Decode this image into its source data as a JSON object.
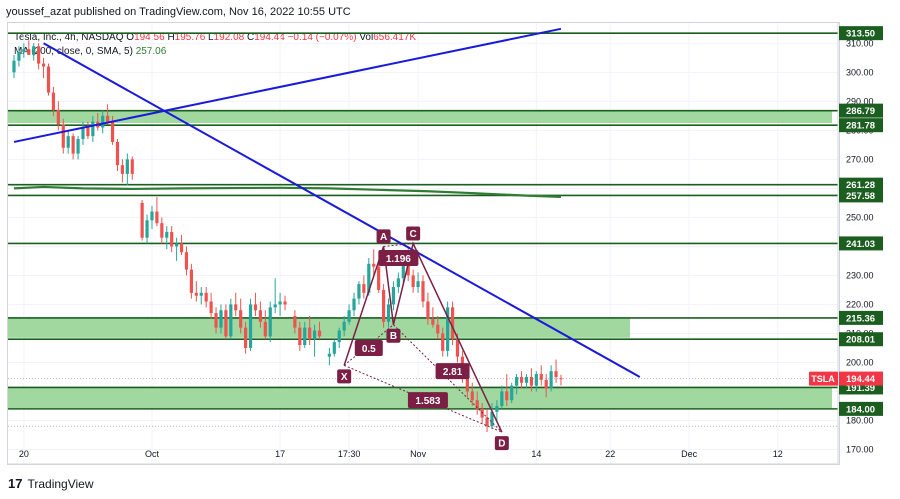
{
  "publisher": "youssef_azat published on TradingView.com, Nov 16, 2022 10:55 UTC",
  "legend": {
    "symbol": "Tesla, Inc., 4h, NASDAQ",
    "open_label": "O",
    "open": "194.56",
    "high_label": "H",
    "high": "195.76",
    "low_label": "L",
    "low": "192.08",
    "close_label": "C",
    "close": "194.44",
    "change": "−0.14 (−0.07%)",
    "vol_label": "Vol",
    "vol": "656.417K",
    "ma_label": "MA (200, close, 0, SMA, 5)",
    "ma_value": "257.06"
  },
  "footer": {
    "brand": "TradingView",
    "mark": "17"
  },
  "colors": {
    "up": "#26a69a",
    "down": "#ef5350",
    "trendline": "#1a1adb",
    "level": "#1b5e20",
    "zone_fill": "#8fd18f",
    "ma": "#2e7d32",
    "pattern": "#7b1f45",
    "ticker_badge": "#f23645"
  },
  "chart_data": {
    "type": "candlestick",
    "currency": "USD",
    "ylim": [
      165,
      317
    ],
    "y_ticks": [
      170,
      180,
      190,
      200,
      210,
      220,
      230,
      240,
      250,
      260,
      270,
      280,
      290,
      300,
      310
    ],
    "y_tick_labels": [
      "170.00",
      "180.00",
      "190.00",
      "200.00",
      "210.00",
      "220.00",
      "230.00",
      "240.00",
      "250.00",
      "260.00",
      "270.00",
      "280.00",
      "290.00",
      "300.00",
      "310.00"
    ],
    "x_range": [
      0,
      166
    ],
    "x_ticks": [
      {
        "x": 2,
        "label": "20"
      },
      {
        "x": 28,
        "label": "Oct"
      },
      {
        "x": 54,
        "label": "17"
      },
      {
        "x": 68,
        "label": "17:30"
      },
      {
        "x": 82,
        "label": "Nov"
      },
      {
        "x": 106,
        "label": "14"
      },
      {
        "x": 121,
        "label": "22"
      },
      {
        "x": 137,
        "label": "Dec"
      },
      {
        "x": 155,
        "label": "12"
      }
    ],
    "candles": [
      {
        "x": 0,
        "o": 300,
        "h": 306,
        "l": 298,
        "c": 304
      },
      {
        "x": 1,
        "o": 304,
        "h": 309,
        "l": 302,
        "c": 307
      },
      {
        "x": 2,
        "o": 307,
        "h": 310,
        "l": 305,
        "c": 308
      },
      {
        "x": 3,
        "o": 308,
        "h": 311,
        "l": 306,
        "c": 306
      },
      {
        "x": 4,
        "o": 306,
        "h": 310,
        "l": 304,
        "c": 309
      },
      {
        "x": 5,
        "o": 309,
        "h": 310,
        "l": 301,
        "c": 303
      },
      {
        "x": 6,
        "o": 303,
        "h": 305,
        "l": 298,
        "c": 302
      },
      {
        "x": 7,
        "o": 302,
        "h": 303,
        "l": 292,
        "c": 293
      },
      {
        "x": 8,
        "o": 293,
        "h": 295,
        "l": 285,
        "c": 287
      },
      {
        "x": 9,
        "o": 287,
        "h": 290,
        "l": 280,
        "c": 282
      },
      {
        "x": 10,
        "o": 282,
        "h": 284,
        "l": 272,
        "c": 274
      },
      {
        "x": 11,
        "o": 274,
        "h": 280,
        "l": 272,
        "c": 278
      },
      {
        "x": 12,
        "o": 278,
        "h": 279,
        "l": 270,
        "c": 272
      },
      {
        "x": 13,
        "o": 272,
        "h": 278,
        "l": 270,
        "c": 277
      },
      {
        "x": 14,
        "o": 277,
        "h": 283,
        "l": 275,
        "c": 281
      },
      {
        "x": 15,
        "o": 281,
        "h": 283,
        "l": 277,
        "c": 278
      },
      {
        "x": 16,
        "o": 278,
        "h": 285,
        "l": 276,
        "c": 283
      },
      {
        "x": 17,
        "o": 283,
        "h": 286,
        "l": 280,
        "c": 281
      },
      {
        "x": 18,
        "o": 281,
        "h": 287,
        "l": 279,
        "c": 285
      },
      {
        "x": 19,
        "o": 285,
        "h": 289,
        "l": 282,
        "c": 283
      },
      {
        "x": 20,
        "o": 283,
        "h": 285,
        "l": 275,
        "c": 276
      },
      {
        "x": 21,
        "o": 276,
        "h": 277,
        "l": 266,
        "c": 268
      },
      {
        "x": 22,
        "o": 268,
        "h": 270,
        "l": 262,
        "c": 265
      },
      {
        "x": 23,
        "o": 265,
        "h": 272,
        "l": 261,
        "c": 270
      },
      {
        "x": 24,
        "o": 270,
        "h": 271,
        "l": 263,
        "c": 265
      },
      {
        "x": 26,
        "o": 255,
        "h": 256,
        "l": 242,
        "c": 243
      },
      {
        "x": 27,
        "o": 243,
        "h": 251,
        "l": 241,
        "c": 249
      },
      {
        "x": 28,
        "o": 249,
        "h": 254,
        "l": 246,
        "c": 252
      },
      {
        "x": 29,
        "o": 252,
        "h": 257,
        "l": 247,
        "c": 248
      },
      {
        "x": 30,
        "o": 248,
        "h": 250,
        "l": 241,
        "c": 243
      },
      {
        "x": 31,
        "o": 243,
        "h": 247,
        "l": 239,
        "c": 245
      },
      {
        "x": 32,
        "o": 245,
        "h": 247,
        "l": 238,
        "c": 240
      },
      {
        "x": 33,
        "o": 240,
        "h": 243,
        "l": 235,
        "c": 241
      },
      {
        "x": 34,
        "o": 241,
        "h": 244,
        "l": 237,
        "c": 238
      },
      {
        "x": 35,
        "o": 238,
        "h": 240,
        "l": 230,
        "c": 232
      },
      {
        "x": 36,
        "o": 232,
        "h": 234,
        "l": 222,
        "c": 224
      },
      {
        "x": 37,
        "o": 224,
        "h": 228,
        "l": 221,
        "c": 223
      },
      {
        "x": 38,
        "o": 223,
        "h": 226,
        "l": 220,
        "c": 224
      },
      {
        "x": 39,
        "o": 224,
        "h": 226,
        "l": 219,
        "c": 221
      },
      {
        "x": 40,
        "o": 221,
        "h": 224,
        "l": 215,
        "c": 217
      },
      {
        "x": 41,
        "o": 217,
        "h": 219,
        "l": 210,
        "c": 212
      },
      {
        "x": 42,
        "o": 212,
        "h": 220,
        "l": 210,
        "c": 218
      },
      {
        "x": 43,
        "o": 218,
        "h": 220,
        "l": 208,
        "c": 209
      },
      {
        "x": 44,
        "o": 209,
        "h": 222,
        "l": 208,
        "c": 220
      },
      {
        "x": 45,
        "o": 220,
        "h": 224,
        "l": 216,
        "c": 218
      },
      {
        "x": 46,
        "o": 218,
        "h": 222,
        "l": 210,
        "c": 212
      },
      {
        "x": 47,
        "o": 212,
        "h": 214,
        "l": 203,
        "c": 205
      },
      {
        "x": 48,
        "o": 205,
        "h": 222,
        "l": 204,
        "c": 220
      },
      {
        "x": 49,
        "o": 220,
        "h": 224,
        "l": 216,
        "c": 218
      },
      {
        "x": 50,
        "o": 218,
        "h": 221,
        "l": 212,
        "c": 214
      },
      {
        "x": 51,
        "o": 214,
        "h": 218,
        "l": 208,
        "c": 209
      },
      {
        "x": 52,
        "o": 209,
        "h": 221,
        "l": 207,
        "c": 219
      },
      {
        "x": 53,
        "o": 219,
        "h": 229,
        "l": 217,
        "c": 220
      },
      {
        "x": 54,
        "o": 220,
        "h": 224,
        "l": 216,
        "c": 221
      },
      {
        "x": 55,
        "o": 221,
        "h": 223,
        "l": 218,
        "c": 220
      },
      {
        "x": 57,
        "o": 216,
        "h": 218,
        "l": 210,
        "c": 212
      },
      {
        "x": 58,
        "o": 212,
        "h": 214,
        "l": 204,
        "c": 206
      },
      {
        "x": 59,
        "o": 206,
        "h": 214,
        "l": 205,
        "c": 212
      },
      {
        "x": 60,
        "o": 212,
        "h": 216,
        "l": 206,
        "c": 208
      },
      {
        "x": 61,
        "o": 208,
        "h": 213,
        "l": 202,
        "c": 211
      },
      {
        "x": 62,
        "o": 211,
        "h": 214,
        "l": 208,
        "c": 209
      },
      {
        "x": 64,
        "o": 202,
        "h": 205,
        "l": 199,
        "c": 203
      },
      {
        "x": 65,
        "o": 203,
        "h": 208,
        "l": 202,
        "c": 207
      },
      {
        "x": 66,
        "o": 207,
        "h": 212,
        "l": 205,
        "c": 211
      },
      {
        "x": 67,
        "o": 211,
        "h": 216,
        "l": 209,
        "c": 214
      },
      {
        "x": 68,
        "o": 214,
        "h": 220,
        "l": 213,
        "c": 218
      },
      {
        "x": 69,
        "o": 218,
        "h": 224,
        "l": 216,
        "c": 222
      },
      {
        "x": 70,
        "o": 222,
        "h": 228,
        "l": 220,
        "c": 227
      },
      {
        "x": 71,
        "o": 227,
        "h": 230,
        "l": 222,
        "c": 224
      },
      {
        "x": 72,
        "o": 224,
        "h": 236,
        "l": 223,
        "c": 234
      },
      {
        "x": 73,
        "o": 234,
        "h": 239,
        "l": 230,
        "c": 233
      },
      {
        "x": 74,
        "o": 233,
        "h": 235,
        "l": 224,
        "c": 225
      },
      {
        "x": 75,
        "o": 225,
        "h": 227,
        "l": 212,
        "c": 214
      },
      {
        "x": 76,
        "o": 214,
        "h": 222,
        "l": 212,
        "c": 220
      },
      {
        "x": 77,
        "o": 220,
        "h": 228,
        "l": 218,
        "c": 226
      },
      {
        "x": 78,
        "o": 226,
        "h": 231,
        "l": 224,
        "c": 229
      },
      {
        "x": 79,
        "o": 229,
        "h": 238,
        "l": 227,
        "c": 235
      },
      {
        "x": 80,
        "o": 235,
        "h": 240,
        "l": 228,
        "c": 230
      },
      {
        "x": 81,
        "o": 230,
        "h": 232,
        "l": 224,
        "c": 226
      },
      {
        "x": 82,
        "o": 226,
        "h": 231,
        "l": 224,
        "c": 228
      },
      {
        "x": 83,
        "o": 228,
        "h": 230,
        "l": 219,
        "c": 221
      },
      {
        "x": 84,
        "o": 221,
        "h": 224,
        "l": 213,
        "c": 215
      },
      {
        "x": 85,
        "o": 215,
        "h": 219,
        "l": 212,
        "c": 213
      },
      {
        "x": 86,
        "o": 213,
        "h": 216,
        "l": 208,
        "c": 210
      },
      {
        "x": 87,
        "o": 210,
        "h": 212,
        "l": 202,
        "c": 204
      },
      {
        "x": 88,
        "o": 204,
        "h": 221,
        "l": 202,
        "c": 219
      },
      {
        "x": 89,
        "o": 219,
        "h": 221,
        "l": 206,
        "c": 208
      },
      {
        "x": 90,
        "o": 208,
        "h": 210,
        "l": 200,
        "c": 202
      },
      {
        "x": 91,
        "o": 202,
        "h": 204,
        "l": 193,
        "c": 195
      },
      {
        "x": 92,
        "o": 195,
        "h": 198,
        "l": 188,
        "c": 190
      },
      {
        "x": 93,
        "o": 190,
        "h": 193,
        "l": 185,
        "c": 187
      },
      {
        "x": 94,
        "o": 187,
        "h": 190,
        "l": 182,
        "c": 184
      },
      {
        "x": 95,
        "o": 184,
        "h": 186,
        "l": 179,
        "c": 181
      },
      {
        "x": 96,
        "o": 181,
        "h": 184,
        "l": 176,
        "c": 178
      },
      {
        "x": 97,
        "o": 178,
        "h": 186,
        "l": 177,
        "c": 183
      },
      {
        "x": 98,
        "o": 183,
        "h": 187,
        "l": 180,
        "c": 185
      },
      {
        "x": 99,
        "o": 185,
        "h": 192,
        "l": 184,
        "c": 190
      },
      {
        "x": 100,
        "o": 190,
        "h": 196,
        "l": 185,
        "c": 187
      },
      {
        "x": 101,
        "o": 187,
        "h": 193,
        "l": 186,
        "c": 192
      },
      {
        "x": 102,
        "o": 192,
        "h": 196,
        "l": 189,
        "c": 195
      },
      {
        "x": 103,
        "o": 195,
        "h": 197,
        "l": 191,
        "c": 193
      },
      {
        "x": 104,
        "o": 193,
        "h": 196,
        "l": 191,
        "c": 195
      },
      {
        "x": 105,
        "o": 195,
        "h": 198,
        "l": 190,
        "c": 192
      },
      {
        "x": 106,
        "o": 192,
        "h": 197,
        "l": 190,
        "c": 196
      },
      {
        "x": 107,
        "o": 196,
        "h": 199,
        "l": 192,
        "c": 194
      },
      {
        "x": 108,
        "o": 194,
        "h": 196,
        "l": 188,
        "c": 191
      },
      {
        "x": 109,
        "o": 191,
        "h": 199,
        "l": 190,
        "c": 197
      },
      {
        "x": 110,
        "o": 197,
        "h": 201,
        "l": 193,
        "c": 195
      },
      {
        "x": 111,
        "o": 194.56,
        "h": 195.76,
        "l": 192.08,
        "c": 194.44
      }
    ],
    "ma_line": [
      {
        "x": 0,
        "y": 260
      },
      {
        "x": 6,
        "y": 260.5
      },
      {
        "x": 14,
        "y": 260
      },
      {
        "x": 24,
        "y": 259.8
      },
      {
        "x": 34,
        "y": 260
      },
      {
        "x": 44,
        "y": 260.1
      },
      {
        "x": 54,
        "y": 260.2
      },
      {
        "x": 64,
        "y": 260
      },
      {
        "x": 74,
        "y": 259.5
      },
      {
        "x": 84,
        "y": 259
      },
      {
        "x": 94,
        "y": 258.3
      },
      {
        "x": 104,
        "y": 257.5
      },
      {
        "x": 111,
        "y": 257.06
      }
    ],
    "levels": [
      {
        "y": 313.5,
        "label": "313.50"
      },
      {
        "y": 286.79,
        "label": "286.79"
      },
      {
        "y": 281.78,
        "label": "281.78"
      },
      {
        "y": 261.28,
        "label": "261.28"
      },
      {
        "y": 257.58,
        "label": "257.58"
      },
      {
        "y": 241.03,
        "label": "241.03"
      },
      {
        "y": 215.36,
        "label": "215.36"
      },
      {
        "y": 208.01,
        "label": "208.01"
      },
      {
        "y": 191.39,
        "label": "191.39"
      },
      {
        "y": 184.0,
        "label": "184.00"
      }
    ],
    "zones": [
      {
        "y1": 282.5,
        "y2": 286.5,
        "x_end": 166
      },
      {
        "y1": 208.5,
        "y2": 215.3,
        "x_end": 125
      },
      {
        "y1": 184.2,
        "y2": 191.2,
        "x_end": 166
      }
    ],
    "trendlines": [
      {
        "x1": 0,
        "y1": 276,
        "x2": 111,
        "y2": 315
      },
      {
        "x1": 6,
        "y1": 310,
        "x2": 127,
        "y2": 195
      }
    ],
    "last_price": {
      "value": 194.44,
      "label": "194.44",
      "ticker": "TSLA"
    },
    "harmonic": {
      "points": [
        {
          "name": "X",
          "x": 67,
          "y": 199
        },
        {
          "name": "A",
          "x": 75,
          "y": 240
        },
        {
          "name": "B",
          "x": 77,
          "y": 213
        },
        {
          "name": "C",
          "x": 81,
          "y": 241
        },
        {
          "name": "D",
          "x": 99,
          "y": 176
        }
      ],
      "ratios": [
        {
          "label": "0.5",
          "x": 72,
          "y": 205
        },
        {
          "label": "1.196",
          "x": 78,
          "y": 236
        },
        {
          "label": "2.81",
          "x": 89,
          "y": 197
        },
        {
          "label": "1.583",
          "x": 84,
          "y": 187
        }
      ]
    }
  }
}
